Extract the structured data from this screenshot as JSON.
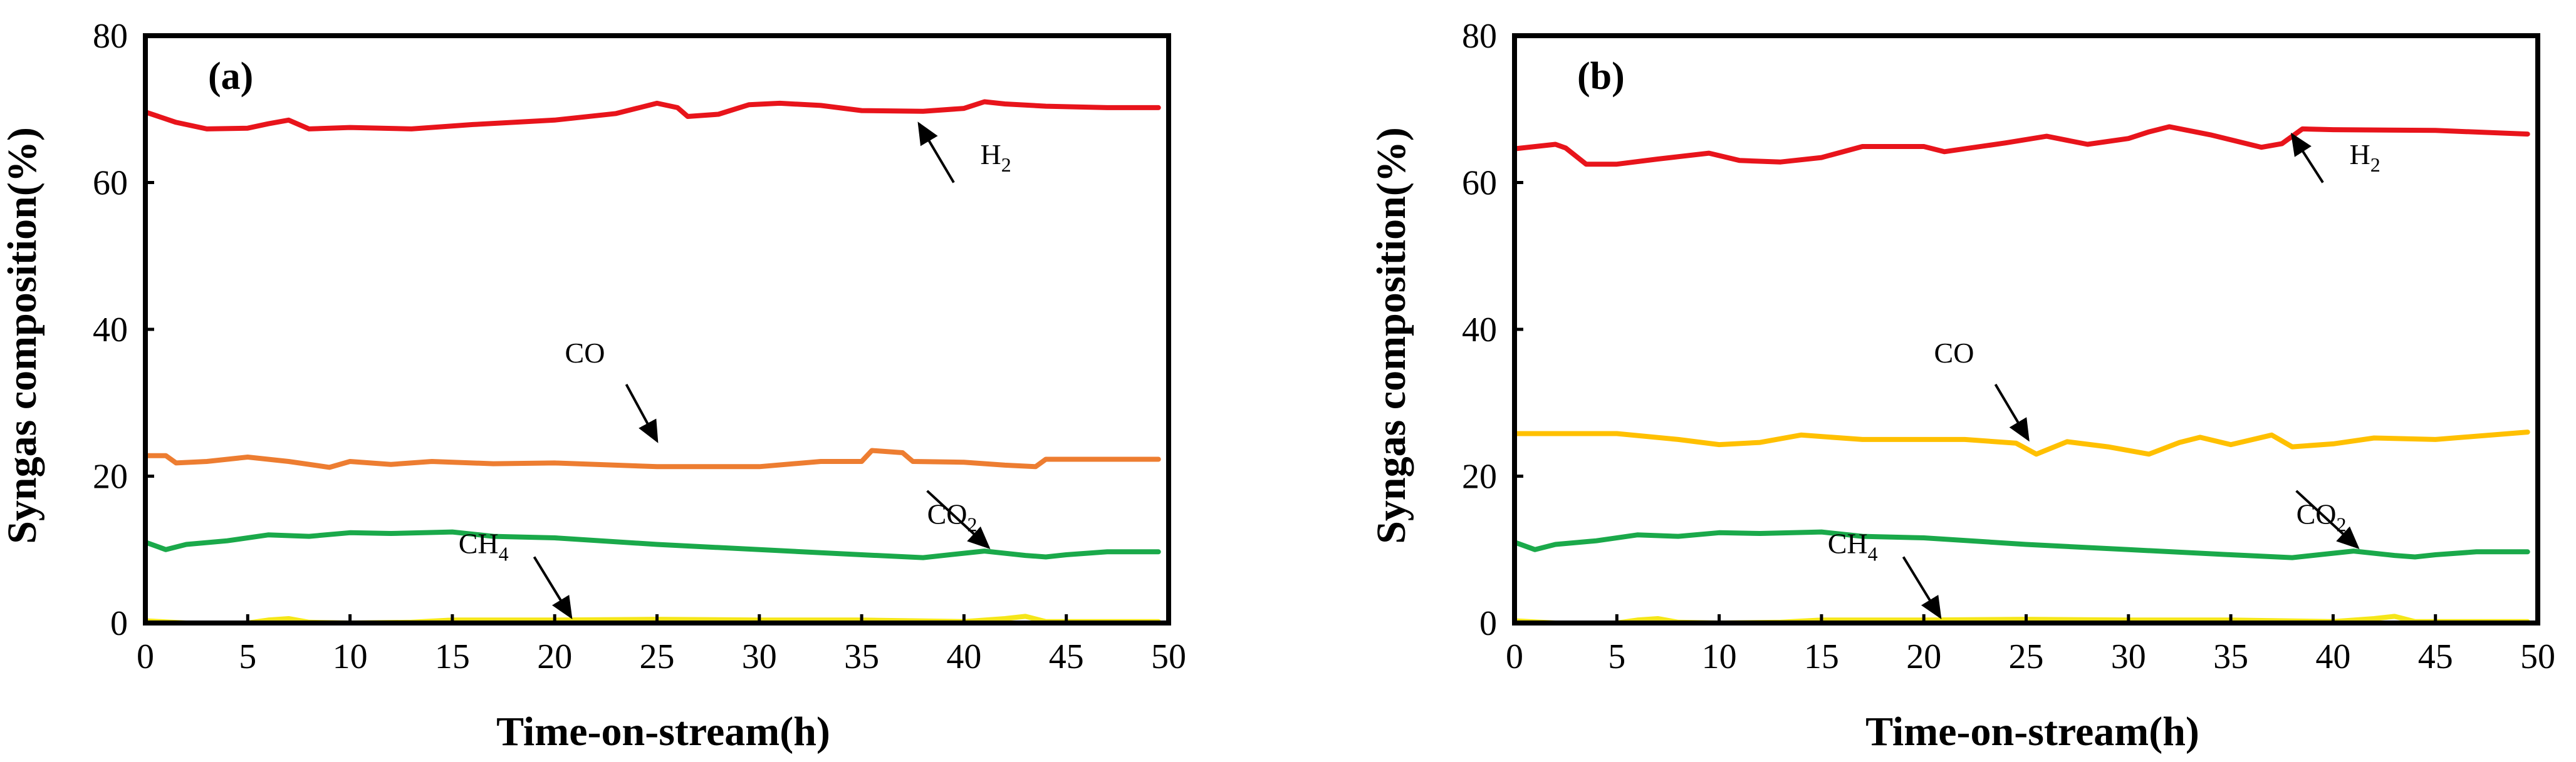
{
  "chart_data": [
    {
      "type": "line",
      "panel_label": "(a)",
      "xlabel": "Time-on-stream(h)",
      "ylabel": "Syngas composition(%)",
      "xlim": [
        0,
        50
      ],
      "ylim": [
        0,
        80
      ],
      "xticks": [
        0,
        5,
        10,
        15,
        20,
        25,
        30,
        35,
        40,
        45,
        50
      ],
      "yticks": [
        0,
        20,
        40,
        60,
        80
      ],
      "series": [
        {
          "name": "H2",
          "color": "#e8141b",
          "x": [
            0,
            1.5,
            3,
            5,
            6,
            7,
            8,
            10,
            13,
            16,
            20,
            23,
            25,
            26,
            26.5,
            28,
            29.5,
            31,
            33,
            35,
            38,
            40,
            41,
            42,
            44,
            47,
            49.5
          ],
          "y": [
            69.6,
            68.2,
            67.3,
            67.4,
            68.0,
            68.5,
            67.3,
            67.5,
            67.3,
            67.9,
            68.5,
            69.4,
            70.8,
            70.2,
            69.0,
            69.3,
            70.6,
            70.8,
            70.5,
            69.8,
            69.7,
            70.1,
            71.0,
            70.7,
            70.4,
            70.2,
            70.2
          ]
        },
        {
          "name": "CO",
          "color": "#ed7d31",
          "x": [
            0,
            1,
            1.5,
            3,
            5,
            7,
            9,
            10,
            12,
            14,
            17,
            20,
            25,
            30,
            33,
            35,
            35.5,
            37,
            37.5,
            40,
            42,
            43.5,
            44,
            46,
            49.5
          ],
          "y": [
            22.8,
            22.8,
            21.8,
            22.0,
            22.6,
            22.0,
            21.2,
            22.0,
            21.6,
            22.0,
            21.7,
            21.8,
            21.3,
            21.3,
            22.0,
            22.0,
            23.5,
            23.2,
            22.0,
            21.9,
            21.5,
            21.3,
            22.3,
            22.3,
            22.3
          ]
        },
        {
          "name": "CO2",
          "color": "#1aa94a",
          "x": [
            0,
            1,
            2,
            4,
            6,
            8,
            10,
            12,
            15,
            17,
            20,
            25,
            30,
            35,
            38,
            41,
            43,
            44,
            45,
            47,
            49.5
          ],
          "y": [
            11.0,
            10.0,
            10.7,
            11.2,
            12.0,
            11.8,
            12.3,
            12.2,
            12.4,
            11.8,
            11.6,
            10.7,
            10.0,
            9.3,
            8.9,
            9.8,
            9.2,
            9.0,
            9.3,
            9.7,
            9.7
          ]
        },
        {
          "name": "CH4",
          "color": "#f5e61a",
          "x": [
            0,
            2,
            5,
            6,
            7,
            8,
            10,
            13,
            15,
            20,
            25,
            30,
            35,
            40,
            42,
            43,
            44,
            46,
            49.5
          ],
          "y": [
            0.3,
            0.0,
            0.0,
            0.4,
            0.6,
            0.1,
            0.0,
            0.1,
            0.4,
            0.4,
            0.5,
            0.4,
            0.4,
            0.2,
            0.6,
            0.9,
            0.2,
            0.2,
            0.2
          ]
        }
      ],
      "annotations": [
        {
          "text": "H",
          "subscript": "2",
          "x": 39.5,
          "y": 63
        },
        {
          "text": "CO",
          "subscript": "",
          "x": 20,
          "y": 35
        },
        {
          "text": "CO",
          "subscript": "2",
          "x": 36,
          "y": 13
        },
        {
          "text": "CH",
          "subscript": "4",
          "x": 15,
          "y": 10
        }
      ]
    },
    {
      "type": "line",
      "panel_label": "(b)",
      "xlabel": "Time-on-stream(h)",
      "ylabel": "Syngas composition(%)",
      "xlim": [
        0,
        50
      ],
      "ylim": [
        0,
        80
      ],
      "xticks": [
        0,
        5,
        10,
        15,
        20,
        25,
        30,
        35,
        40,
        45,
        50
      ],
      "yticks": [
        0,
        20,
        40,
        60,
        80
      ],
      "series": [
        {
          "name": "H2",
          "color": "#e8141b",
          "x": [
            0,
            2,
            2.5,
            3.5,
            5,
            7,
            9.5,
            11,
            13,
            15,
            17,
            20,
            21,
            22,
            24,
            26,
            28,
            30,
            31,
            32,
            34,
            36.5,
            37.5,
            38.5,
            40,
            45,
            49.5
          ],
          "y": [
            64.6,
            65.2,
            64.7,
            62.5,
            62.5,
            63.2,
            64.0,
            63.0,
            62.8,
            63.4,
            64.9,
            64.9,
            64.2,
            64.6,
            65.4,
            66.3,
            65.2,
            66.0,
            66.9,
            67.6,
            66.5,
            64.8,
            65.3,
            67.3,
            67.2,
            67.1,
            66.6
          ]
        },
        {
          "name": "CO",
          "color": "#ffc000",
          "x": [
            0,
            3,
            5,
            8,
            10,
            12,
            14,
            17,
            20,
            22,
            24.5,
            25.5,
            27,
            29,
            31,
            32.5,
            33.5,
            35,
            37,
            38,
            40,
            42,
            45,
            49.5
          ],
          "y": [
            25.8,
            25.8,
            25.8,
            25.0,
            24.3,
            24.6,
            25.6,
            25.0,
            25.0,
            25.0,
            24.5,
            23.0,
            24.7,
            24.0,
            23.0,
            24.6,
            25.3,
            24.3,
            25.6,
            24.0,
            24.4,
            25.2,
            25.0,
            26.0
          ]
        },
        {
          "name": "CO2",
          "color": "#1aa94a",
          "x": [
            0,
            1,
            2,
            4,
            6,
            8,
            10,
            12,
            15,
            17,
            20,
            25,
            30,
            35,
            38,
            41,
            43,
            44,
            45,
            47,
            49.5
          ],
          "y": [
            11.0,
            10.0,
            10.7,
            11.2,
            12.0,
            11.8,
            12.3,
            12.2,
            12.4,
            11.8,
            11.6,
            10.7,
            10.0,
            9.3,
            8.9,
            9.8,
            9.2,
            9.0,
            9.3,
            9.7,
            9.7
          ]
        },
        {
          "name": "CH4",
          "color": "#f5e61a",
          "x": [
            0,
            2,
            5,
            6,
            7,
            8,
            10,
            13,
            15,
            20,
            25,
            30,
            35,
            40,
            42,
            43,
            44,
            46,
            49.5
          ],
          "y": [
            0.3,
            0.0,
            0.0,
            0.4,
            0.6,
            0.1,
            0.0,
            0.1,
            0.4,
            0.4,
            0.5,
            0.4,
            0.4,
            0.2,
            0.6,
            0.9,
            0.2,
            0.2,
            0.2
          ]
        }
      ],
      "annotations": [
        {
          "text": "H",
          "subscript": "2",
          "x": 39.5,
          "y": 63
        },
        {
          "text": "CO",
          "subscript": "",
          "x": 20,
          "y": 35
        },
        {
          "text": "CO",
          "subscript": "2",
          "x": 36,
          "y": 13
        },
        {
          "text": "CH",
          "subscript": "4",
          "x": 15,
          "y": 10
        }
      ]
    }
  ]
}
